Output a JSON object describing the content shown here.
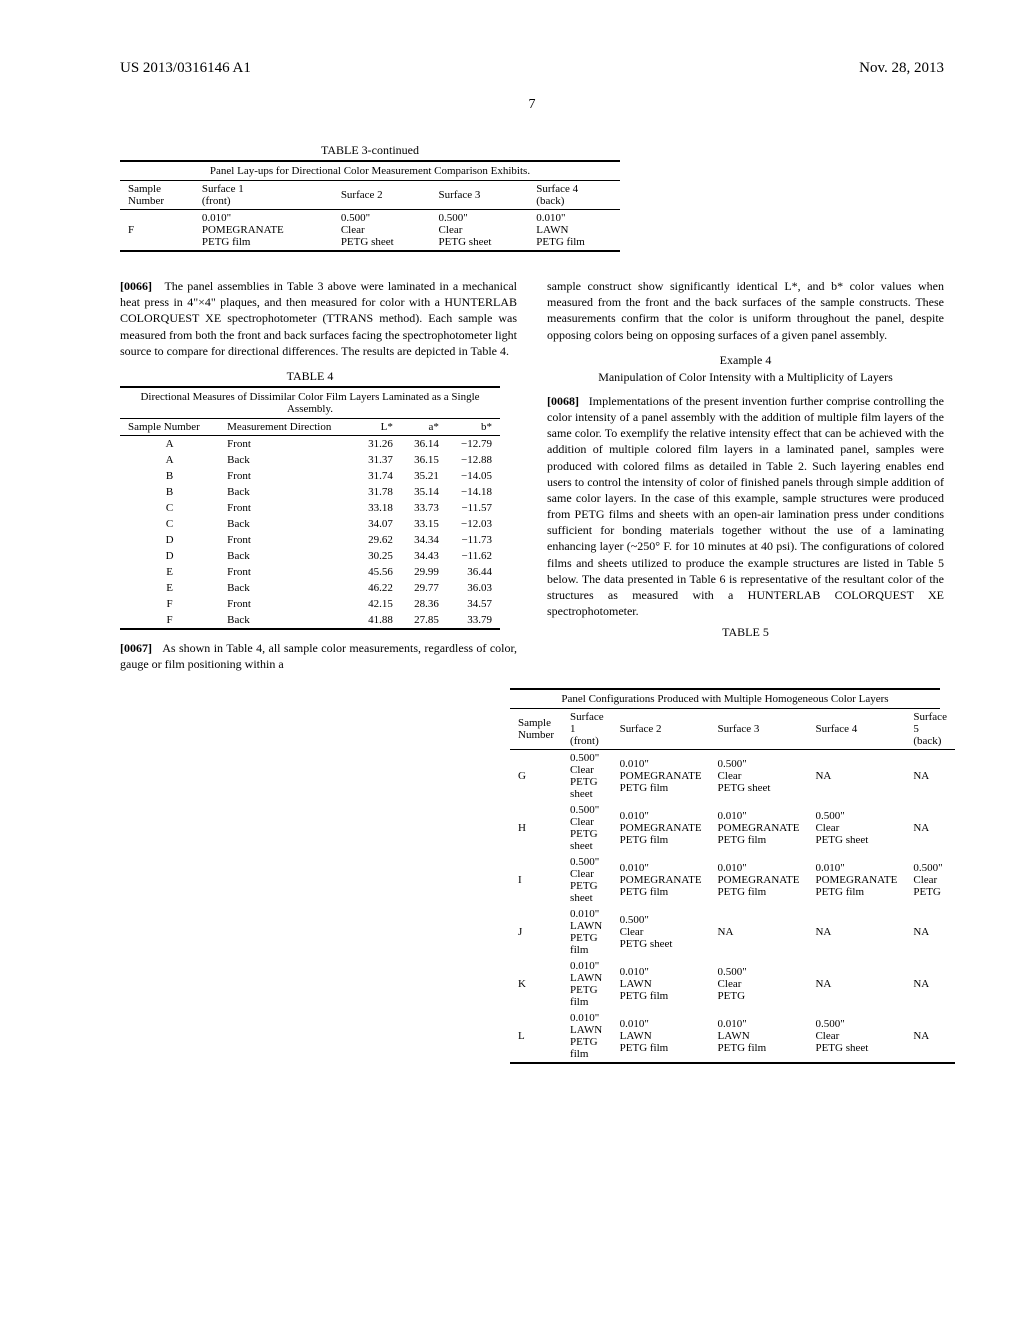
{
  "header": {
    "doc_number": "US 2013/0316146 A1",
    "date": "Nov. 28, 2013",
    "page": "7"
  },
  "table3": {
    "title": "TABLE 3-continued",
    "subtitle": "Panel Lay-ups for Directional Color Measurement Comparison Exhibits.",
    "columns": [
      "Sample Number",
      "Surface 1 (front)",
      "Surface 2",
      "Surface 3",
      "Surface 4 (back)"
    ],
    "rows": [
      {
        "n": "F",
        "s1l1": "0.010\"",
        "s1l2": "POMEGRANATE",
        "s1l3": "PETG film",
        "s2l1": "0.500\"",
        "s2l2": "Clear",
        "s2l3": "PETG sheet",
        "s3l1": "0.500\"",
        "s3l2": "Clear",
        "s3l3": "PETG sheet",
        "s4l1": "0.010\"",
        "s4l2": "LAWN",
        "s4l3": "PETG film"
      }
    ]
  },
  "para66_num": "[0066]",
  "para66": "The panel assemblies in Table 3 above were laminated in a mechanical heat press in 4\"×4\" plaques, and then measured for color with a HUNTERLAB COLORQUEST XE spectrophotometer (TTRANS method). Each sample was measured from both the front and back surfaces facing the spectrophotometer light source to compare for directional differences. The results are depicted in Table 4.",
  "table4": {
    "title": "TABLE 4",
    "subtitle": "Directional Measures of Dissimilar Color Film Layers Laminated as a Single Assembly.",
    "columns": [
      "Sample Number",
      "Measurement Direction",
      "L*",
      "a*",
      "b*"
    ],
    "rows": [
      {
        "n": "A",
        "d": "Front",
        "l": "31.26",
        "a": "36.14",
        "b": "−12.79"
      },
      {
        "n": "A",
        "d": "Back",
        "l": "31.37",
        "a": "36.15",
        "b": "−12.88"
      },
      {
        "n": "B",
        "d": "Front",
        "l": "31.74",
        "a": "35.21",
        "b": "−14.05"
      },
      {
        "n": "B",
        "d": "Back",
        "l": "31.78",
        "a": "35.14",
        "b": "−14.18"
      },
      {
        "n": "C",
        "d": "Front",
        "l": "33.18",
        "a": "33.73",
        "b": "−11.57"
      },
      {
        "n": "C",
        "d": "Back",
        "l": "34.07",
        "a": "33.15",
        "b": "−12.03"
      },
      {
        "n": "D",
        "d": "Front",
        "l": "29.62",
        "a": "34.34",
        "b": "−11.73"
      },
      {
        "n": "D",
        "d": "Back",
        "l": "30.25",
        "a": "34.43",
        "b": "−11.62"
      },
      {
        "n": "E",
        "d": "Front",
        "l": "45.56",
        "a": "29.99",
        "b": "36.44"
      },
      {
        "n": "E",
        "d": "Back",
        "l": "46.22",
        "a": "29.77",
        "b": "36.03"
      },
      {
        "n": "F",
        "d": "Front",
        "l": "42.15",
        "a": "28.36",
        "b": "34.57"
      },
      {
        "n": "F",
        "d": "Back",
        "l": "41.88",
        "a": "27.85",
        "b": "33.79"
      }
    ]
  },
  "para67_num": "[0067]",
  "para67": "As shown in Table 4, all sample color measurements, regardless of color, gauge or film positioning within a",
  "para67b": "sample construct show significantly identical L*, and b* color values when measured from the front and the back surfaces of the sample constructs. These measurements confirm that the color is uniform throughout the panel, despite opposing colors being on opposing surfaces of a given panel assembly.",
  "example4_label": "Example 4",
  "example4_title": "Manipulation of Color Intensity with a Multiplicity of Layers",
  "para68_num": "[0068]",
  "para68": "Implementations of the present invention further comprise controlling the color intensity of a panel assembly with the addition of multiple film layers of the same color. To exemplify the relative intensity effect that can be achieved with the addition of multiple colored film layers in a laminated panel, samples were produced with colored films as detailed in Table 2. Such layering enables end users to control the intensity of color of finished panels through simple addition of same color layers. In the case of this example, sample structures were produced from PETG films and sheets with an open-air lamination press under conditions sufficient for bonding materials together without the use of a laminating enhancing layer (~250° F. for 10 minutes at 40 psi). The configurations of colored films and sheets utilized to produce the example structures are listed in Table 5 below. The data presented in Table 6 is representative of the resultant color of the structures as measured with a HUNTERLAB COLORQUEST XE spectrophotometer.",
  "table5": {
    "title": "TABLE 5",
    "subtitle": "Panel Configurations Produced with Multiple Homogeneous Color Layers",
    "columns": [
      "Sample Number",
      "Surface 1 (front)",
      "Surface 2",
      "Surface 3",
      "Surface 4",
      "Surface 5 (back)"
    ],
    "rows": [
      {
        "n": "G",
        "s1": [
          "0.500\"",
          "Clear",
          "PETG sheet"
        ],
        "s2": [
          "0.010\"",
          "POMEGRANATE",
          "PETG film"
        ],
        "s3": [
          "0.500\"",
          "Clear",
          "PETG sheet"
        ],
        "s4": [
          "NA"
        ],
        "s5": [
          "NA"
        ]
      },
      {
        "n": "H",
        "s1": [
          "0.500\"",
          "Clear",
          "PETG sheet"
        ],
        "s2": [
          "0.010\"",
          "POMEGRANATE",
          "PETG film"
        ],
        "s3": [
          "0.010\"",
          "POMEGRANATE",
          "PETG film"
        ],
        "s4": [
          "0.500\"",
          "Clear",
          "PETG sheet"
        ],
        "s5": [
          "NA"
        ]
      },
      {
        "n": "I",
        "s1": [
          "0.500\"",
          "Clear",
          "PETG sheet"
        ],
        "s2": [
          "0.010\"",
          "POMEGRANATE",
          "PETG film"
        ],
        "s3": [
          "0.010\"",
          "POMEGRANATE",
          "PETG film"
        ],
        "s4": [
          "0.010\"",
          "POMEGRANATE",
          "PETG film"
        ],
        "s5": [
          "0.500\"",
          "Clear",
          "PETG"
        ]
      },
      {
        "n": "J",
        "s1": [
          "0.010\"",
          "LAWN",
          "PETG film"
        ],
        "s2": [
          "0.500\"",
          "Clear",
          "PETG sheet"
        ],
        "s3": [
          "NA"
        ],
        "s4": [
          "NA"
        ],
        "s5": [
          "NA"
        ]
      },
      {
        "n": "K",
        "s1": [
          "0.010\"",
          "LAWN",
          "PETG film"
        ],
        "s2": [
          "0.010\"",
          "LAWN",
          "PETG film"
        ],
        "s3": [
          "0.500\"",
          "Clear",
          "PETG"
        ],
        "s4": [
          "NA"
        ],
        "s5": [
          "NA"
        ]
      },
      {
        "n": "L",
        "s1": [
          "0.010\"",
          "LAWN",
          "PETG film"
        ],
        "s2": [
          "0.010\"",
          "LAWN",
          "PETG film"
        ],
        "s3": [
          "0.010\"",
          "LAWN",
          "PETG film"
        ],
        "s4": [
          "0.500\"",
          "Clear",
          "PETG sheet"
        ],
        "s5": [
          "NA"
        ]
      }
    ]
  }
}
